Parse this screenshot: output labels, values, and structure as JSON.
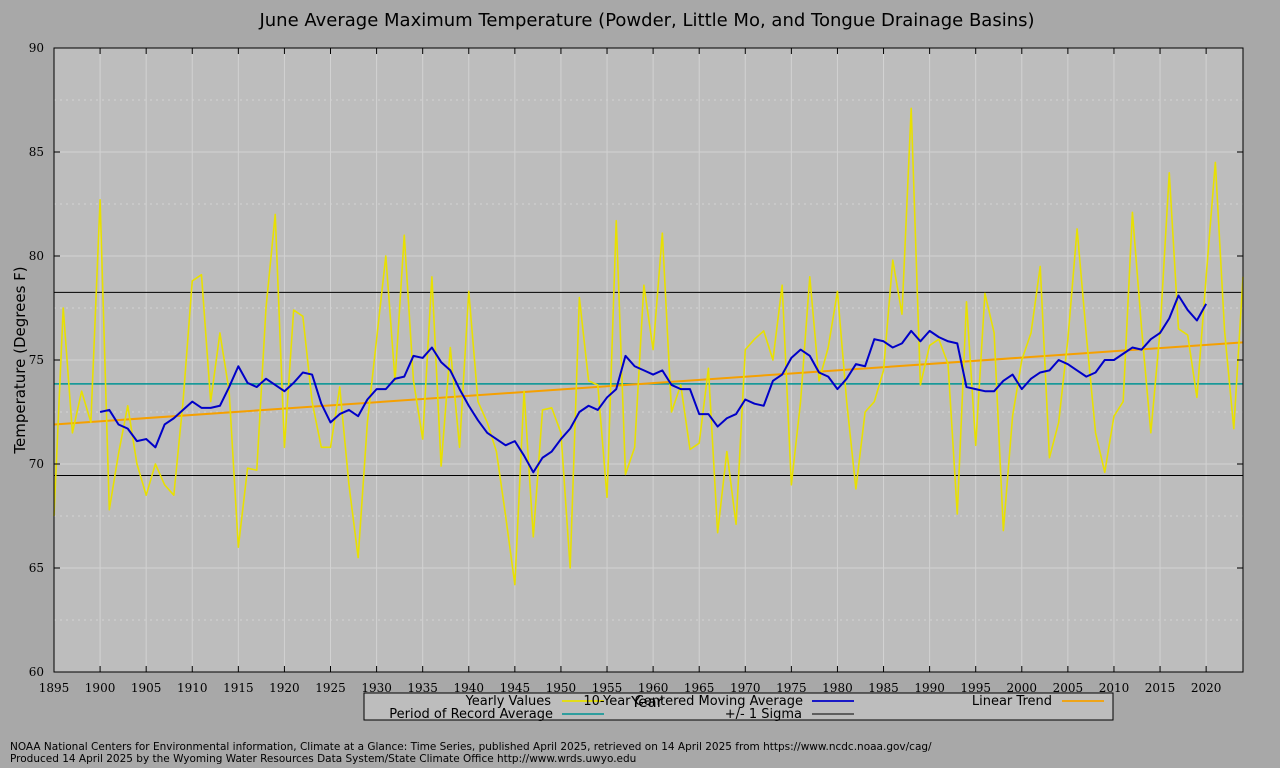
{
  "chart_data": {
    "type": "line",
    "title": "June Average Maximum Temperature (Powder, Little Mo, and Tongue Drainage Basins)",
    "xlabel": "Year",
    "ylabel": "Temperature (Degrees F)",
    "xlim": [
      1895,
      2024
    ],
    "ylim": [
      60,
      90
    ],
    "x_ticks": [
      1895,
      1900,
      1905,
      1910,
      1915,
      1920,
      1925,
      1930,
      1935,
      1940,
      1945,
      1950,
      1955,
      1960,
      1965,
      1970,
      1975,
      1980,
      1985,
      1990,
      1995,
      2000,
      2005,
      2010,
      2015,
      2020
    ],
    "y_ticks": [
      60,
      65,
      70,
      75,
      80,
      85,
      90
    ],
    "grid": true,
    "legend_position": "bottom",
    "series": [
      {
        "name": "Yearly Values",
        "color": "#e8e000",
        "x_start": 1895,
        "values": [
          67.5,
          77.5,
          71.5,
          73.5,
          72.0,
          82.7,
          67.8,
          70.5,
          72.8,
          70.0,
          68.5,
          70.0,
          69.0,
          68.5,
          73.0,
          78.8,
          79.1,
          73.0,
          76.3,
          73.5,
          66.0,
          69.8,
          69.7,
          77.5,
          82.0,
          70.8,
          77.4,
          77.1,
          73.0,
          70.8,
          70.8,
          73.7,
          69.0,
          65.5,
          72.0,
          76.0,
          80.0,
          74.0,
          81.0,
          74.0,
          71.2,
          79.0,
          69.9,
          75.6,
          70.8,
          78.3,
          73.0,
          72.0,
          70.6,
          67.5,
          64.2,
          73.5,
          66.5,
          72.6,
          72.7,
          71.5,
          65.0,
          78.0,
          74.0,
          73.8,
          68.4,
          81.7,
          69.5,
          70.8,
          78.6,
          75.5,
          81.1,
          72.5,
          73.8,
          70.7,
          71.0,
          74.6,
          66.7,
          70.6,
          67.1,
          75.5,
          76.0,
          76.4,
          75.0,
          78.6,
          69.0,
          73.0,
          79.0,
          74.0,
          75.6,
          78.3,
          73.0,
          68.8,
          72.5,
          73.0,
          74.5,
          79.8,
          77.2,
          87.1,
          73.8,
          75.7,
          76.0,
          74.8,
          67.6,
          77.8,
          70.9,
          78.2,
          76.3,
          66.8,
          72.3,
          75.0,
          76.3,
          79.5,
          70.3,
          72.0,
          76.0,
          81.3,
          76.2,
          71.5,
          69.6,
          72.3,
          73.0,
          82.1,
          76.5,
          71.5,
          76.4,
          84.0,
          76.5,
          76.2,
          73.2,
          79.0,
          84.5,
          76.4,
          71.7,
          79.0
        ]
      },
      {
        "name": "10-Year Centered Moving Average",
        "color": "#0000c8",
        "x_start": 1900,
        "values": [
          72.5,
          72.6,
          71.9,
          71.7,
          71.1,
          71.2,
          70.8,
          71.9,
          72.2,
          72.6,
          73.0,
          72.7,
          72.7,
          72.8,
          73.7,
          74.7,
          73.9,
          73.7,
          74.1,
          73.8,
          73.5,
          73.9,
          74.4,
          74.3,
          72.9,
          72.0,
          72.4,
          72.6,
          72.3,
          73.1,
          73.6,
          73.6,
          74.1,
          74.2,
          75.2,
          75.1,
          75.6,
          74.9,
          74.5,
          73.6,
          72.8,
          72.1,
          71.5,
          71.2,
          70.9,
          71.1,
          70.4,
          69.6,
          70.3,
          70.6,
          71.2,
          71.7,
          72.5,
          72.8,
          72.6,
          73.2,
          73.6,
          75.2,
          74.7,
          74.5,
          74.3,
          74.5,
          73.8,
          73.6,
          73.6,
          72.4,
          72.4,
          71.8,
          72.2,
          72.4,
          73.1,
          72.9,
          72.8,
          74.0,
          74.3,
          75.1,
          75.5,
          75.2,
          74.4,
          74.2,
          73.6,
          74.1,
          74.8,
          74.7,
          76.0,
          75.9,
          75.6,
          75.8,
          76.4,
          75.9,
          76.4,
          76.1,
          75.9,
          75.8,
          73.7,
          73.6,
          73.5,
          73.5,
          74.0,
          74.3,
          73.6,
          74.1,
          74.4,
          74.5,
          75.0,
          74.8,
          74.5,
          74.2,
          74.4,
          75.0,
          75.0,
          75.3,
          75.6,
          75.5,
          76.0,
          76.3,
          77.0,
          78.1,
          77.4,
          76.9,
          77.7
        ]
      },
      {
        "name": "Linear Trend",
        "color": "#f5a000",
        "x": [
          1895,
          2024
        ],
        "values": [
          71.9,
          75.85
        ]
      },
      {
        "name": "Period of Record Average",
        "color": "#009494",
        "x": [
          1895,
          2024
        ],
        "values": [
          73.85,
          73.85
        ]
      },
      {
        "name": "+/- 1 Sigma",
        "color": "#000000",
        "x": [
          1895,
          2024
        ],
        "values": [
          78.25,
          78.25
        ],
        "lower_values": [
          69.45,
          69.45
        ]
      }
    ],
    "credits": [
      "NOAA National Centers for Environmental information, Climate at a Glance: Time Series, published April 2025, retrieved on 14 April 2025 from https://www.ncdc.noaa.gov/cag/",
      "Produced 14 April 2025 by the Wyoming Water Resources Data System/State Climate Office http://www.wrds.uwyo.edu"
    ]
  }
}
